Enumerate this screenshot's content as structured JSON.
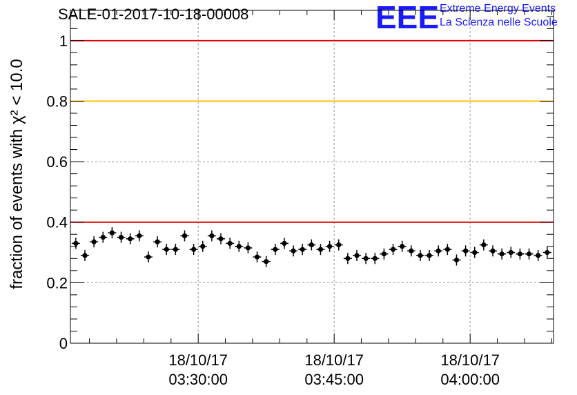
{
  "header": {
    "run_title": "SALE-01-2017-10-18-00008",
    "logo_mark": "EEE",
    "logo_line1": "Extreme Energy Events",
    "logo_line2": "La Scienza nelle Scuole"
  },
  "chart_data": {
    "type": "scatter",
    "title": "SALE-01-2017-10-18-00008",
    "ylabel": "fraction of events with χ² < 10.0",
    "ylim": [
      0,
      1.1
    ],
    "grid": true,
    "x_ticks": [
      {
        "value": 30,
        "date": "18/10/17",
        "time": "03:30:00"
      },
      {
        "value": 45,
        "date": "18/10/17",
        "time": "03:45:00"
      },
      {
        "value": 60,
        "date": "18/10/17",
        "time": "04:00:00"
      }
    ],
    "xlim": [
      15.9,
      69.2
    ],
    "y_ticks": [
      "0",
      "0.2",
      "0.4",
      "0.6",
      "0.8",
      "1"
    ],
    "y_tick_values": [
      0,
      0.2,
      0.4,
      0.6,
      0.8,
      1.0
    ],
    "reference_lines": [
      {
        "y": 1.0,
        "color": "#e00000"
      },
      {
        "y": 0.8,
        "color": "#ffc000"
      },
      {
        "y": 0.4,
        "color": "#e00000"
      }
    ],
    "marker_color": "#000000",
    "series": [
      {
        "values": [
          0.33,
          0.29,
          0.335,
          0.35,
          0.365,
          0.35,
          0.345,
          0.355,
          0.285,
          0.335,
          0.31,
          0.31,
          0.355,
          0.31,
          0.32,
          0.355,
          0.345,
          0.33,
          0.32,
          0.315,
          0.285,
          0.27,
          0.31,
          0.33,
          0.305,
          0.31,
          0.325,
          0.31,
          0.32,
          0.325,
          0.28,
          0.29,
          0.28,
          0.28,
          0.295,
          0.31,
          0.32,
          0.305,
          0.29,
          0.29,
          0.305,
          0.31,
          0.275,
          0.305,
          0.3,
          0.325,
          0.305,
          0.295,
          0.3,
          0.295,
          0.295,
          0.29,
          0.3
        ],
        "x": [
          16.5,
          17.5,
          18.5,
          19.5,
          20.5,
          21.5,
          22.5,
          23.5,
          24.5,
          25.5,
          26.5,
          27.5,
          28.5,
          29.5,
          30.5,
          31.5,
          32.5,
          33.5,
          34.5,
          35.5,
          36.5,
          37.5,
          38.5,
          39.5,
          40.5,
          41.5,
          42.5,
          43.5,
          44.5,
          45.5,
          46.5,
          47.5,
          48.5,
          49.5,
          50.5,
          51.5,
          52.5,
          53.5,
          54.5,
          55.5,
          56.5,
          57.5,
          58.5,
          59.5,
          60.5,
          61.5,
          62.5,
          63.5,
          64.5,
          65.5,
          66.5,
          67.5,
          68.5
        ]
      }
    ]
  }
}
